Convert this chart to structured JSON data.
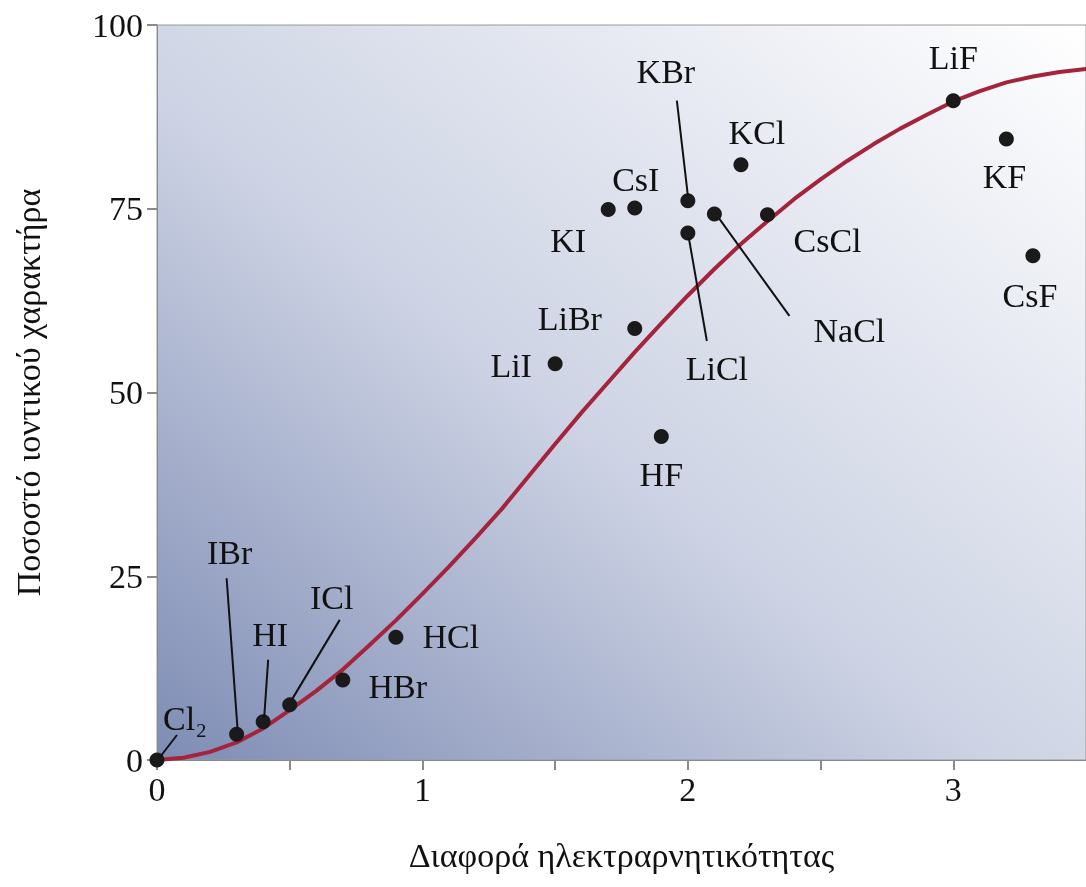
{
  "chart_data": {
    "type": "scatter",
    "xlabel": "Διαφορά ηλεκτραρνητικότητας",
    "ylabel": "Ποσοστό ιοντικού χαρακτήρα",
    "xlim": [
      0,
      3.5
    ],
    "ylim": [
      0,
      100
    ],
    "xticks": [
      0,
      {
        "value": 0.5,
        "label": null
      },
      1,
      {
        "value": 1.5,
        "label": null
      },
      2,
      {
        "value": 2.5,
        "label": null
      },
      3
    ],
    "yticks": [
      0,
      25,
      50,
      75,
      100
    ],
    "grid": false,
    "series": [
      {
        "type": "line",
        "color": "#a4243b",
        "marker": "none",
        "line_style": "solid",
        "x": [
          0,
          0.1,
          0.2,
          0.3,
          0.4,
          0.5,
          0.6,
          0.7,
          0.8,
          0.9,
          1.0,
          1.1,
          1.2,
          1.3,
          1.4,
          1.5,
          1.6,
          1.7,
          1.8,
          1.9,
          2.0,
          2.1,
          2.2,
          2.3,
          2.4,
          2.5,
          2.6,
          2.7,
          2.8,
          2.9,
          3.0,
          3.1,
          3.2,
          3.3,
          3.4,
          3.5
        ],
        "values": [
          0,
          0.3,
          1.1,
          2.4,
          4.3,
          6.8,
          9.4,
          12.3,
          15.6,
          19.0,
          22.6,
          26.3,
          30.2,
          34.2,
          38.6,
          43.0,
          47.3,
          51.4,
          55.5,
          59.4,
          63.2,
          66.8,
          70.2,
          73.3,
          76.3,
          79.0,
          81.5,
          83.8,
          85.9,
          87.8,
          89.6,
          91.0,
          92.2,
          93.0,
          93.6,
          94.0
        ]
      },
      {
        "type": "scatter",
        "color": "#1a1a1a",
        "marker": "circle",
        "x": [
          0,
          0.3,
          0.4,
          0.5,
          0.7,
          0.9,
          1.5,
          1.8,
          1.9,
          1.7,
          1.8,
          2.0,
          2.0,
          2.1,
          2.2,
          2.3,
          3.0,
          3.2,
          3.3
        ],
        "values": [
          0,
          3.5,
          5.2,
          7.5,
          10.9,
          16.7,
          53.9,
          58.7,
          44.0,
          74.9,
          75.1,
          76.1,
          71.7,
          74.3,
          81.0,
          74.2,
          89.7,
          84.5,
          68.6
        ]
      }
    ],
    "annotations": [
      {
        "text": "Cl₂",
        "x": 0,
        "y": 0
      },
      {
        "text": "IBr",
        "x": 0.3,
        "y": 3.5
      },
      {
        "text": "HI",
        "x": 0.4,
        "y": 5.2
      },
      {
        "text": "ICl",
        "x": 0.5,
        "y": 7.5
      },
      {
        "text": "HBr",
        "x": 0.7,
        "y": 10.9
      },
      {
        "text": "HCl",
        "x": 0.9,
        "y": 16.7
      },
      {
        "text": "LiI",
        "x": 1.5,
        "y": 53.9
      },
      {
        "text": "LiBr",
        "x": 1.8,
        "y": 58.7
      },
      {
        "text": "HF",
        "x": 1.9,
        "y": 44.0
      },
      {
        "text": "KI",
        "x": 1.7,
        "y": 74.9
      },
      {
        "text": "CsI",
        "x": 1.8,
        "y": 75.1
      },
      {
        "text": "KBr",
        "x": 2.0,
        "y": 76.1
      },
      {
        "text": "LiCl",
        "x": 2.0,
        "y": 71.7
      },
      {
        "text": "NaCl",
        "x": 2.1,
        "y": 74.3
      },
      {
        "text": "KCl",
        "x": 2.2,
        "y": 81.0
      },
      {
        "text": "CsCl",
        "x": 2.3,
        "y": 74.2
      },
      {
        "text": "LiF",
        "x": 3.0,
        "y": 89.7
      },
      {
        "text": "KF",
        "x": 3.2,
        "y": 84.5
      },
      {
        "text": "CsF",
        "x": 3.3,
        "y": 68.6
      }
    ]
  }
}
